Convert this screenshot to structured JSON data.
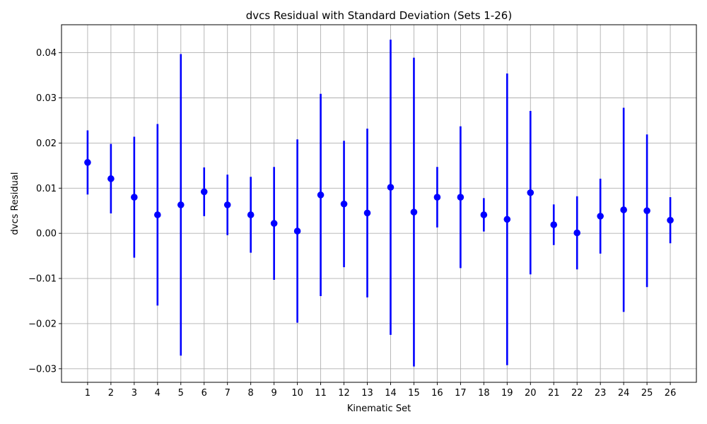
{
  "chart_data": {
    "type": "scatter",
    "title": "dvcs Residual with Standard Deviation (Sets 1-26)",
    "xlabel": "Kinematic Set",
    "ylabel": "dvcs Residual",
    "categories": [
      "1",
      "2",
      "3",
      "4",
      "5",
      "6",
      "7",
      "8",
      "9",
      "10",
      "11",
      "12",
      "13",
      "14",
      "15",
      "16",
      "17",
      "18",
      "19",
      "20",
      "21",
      "22",
      "23",
      "24",
      "25",
      "26"
    ],
    "series": [
      {
        "values": [
          0.0157,
          0.0121,
          0.008,
          0.0041,
          0.0063,
          0.0092,
          0.0063,
          0.0041,
          0.0022,
          0.0005,
          0.0085,
          0.0065,
          0.0045,
          0.0102,
          0.0047,
          0.008,
          0.008,
          0.0041,
          0.0031,
          0.009,
          0.0019,
          0.0001,
          0.0038,
          0.0052,
          0.005,
          0.0029
        ],
        "error": [
          0.0071,
          0.0077,
          0.0134,
          0.0201,
          0.0334,
          0.0054,
          0.0067,
          0.0084,
          0.0125,
          0.0203,
          0.0224,
          0.014,
          0.0187,
          0.0327,
          0.0342,
          0.0067,
          0.0157,
          0.0037,
          0.0323,
          0.0181,
          0.0045,
          0.0081,
          0.0083,
          0.0226,
          0.0169,
          0.0051
        ]
      }
    ],
    "ylim": [
      -0.033,
      0.0462
    ],
    "yticks": [
      -0.03,
      -0.02,
      -0.01,
      0.0,
      0.01,
      0.02,
      0.03,
      0.04
    ],
    "ytick_labels": [
      "−0.03",
      "−0.02",
      "−0.01",
      "0.00",
      "0.01",
      "0.02",
      "0.03",
      "0.04"
    ],
    "grid": true,
    "colors": {
      "marker": "#0000ff",
      "errorbar": "#0000ff",
      "grid": "#b0b0b0"
    }
  }
}
